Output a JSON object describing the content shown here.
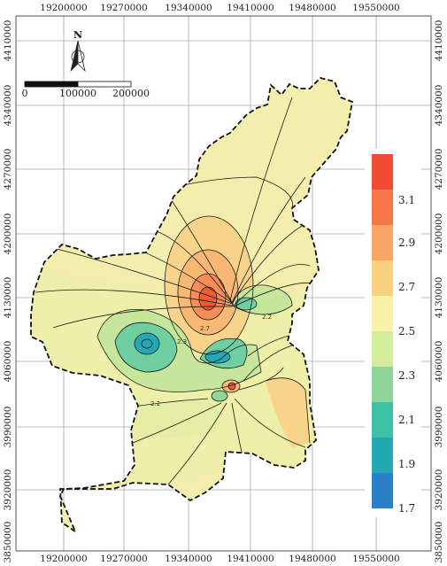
{
  "axes": {
    "x_ticks": [
      "19200000",
      "19270000",
      "19340000",
      "19410000",
      "19480000",
      "19550000"
    ],
    "y_ticks": [
      "4410000",
      "4340000",
      "4270000",
      "4200000",
      "4130000",
      "4060000",
      "3990000",
      "3920000",
      "3850000"
    ]
  },
  "north_arrow": {
    "letter": "N",
    "icon": "north-arrow-icon"
  },
  "scale_bar": {
    "labels": [
      "0",
      "100000",
      "200000"
    ]
  },
  "legend": {
    "labels": [
      "3.1",
      "2.9",
      "2.7",
      "2.5",
      "2.3",
      "2.1",
      "1.9",
      "1.7"
    ],
    "colors": [
      "#f04a32",
      "#f7774a",
      "#f9a664",
      "#fad27f",
      "#f8f3a8",
      "#d4ec9c",
      "#8fd69d",
      "#3dc2a6",
      "#22a9b5",
      "#2b7fc8"
    ]
  },
  "map": {
    "fill_colors": {
      "base": "#f3eeae",
      "high": "#f8c27a",
      "peak": "#f05a35",
      "mid_green": "#c6e69c",
      "low_green": "#6fcfa0",
      "min_teal": "#22a9b5"
    },
    "contour_labels": [
      "2.7",
      "2.3",
      "2.2",
      "2.2"
    ]
  }
}
